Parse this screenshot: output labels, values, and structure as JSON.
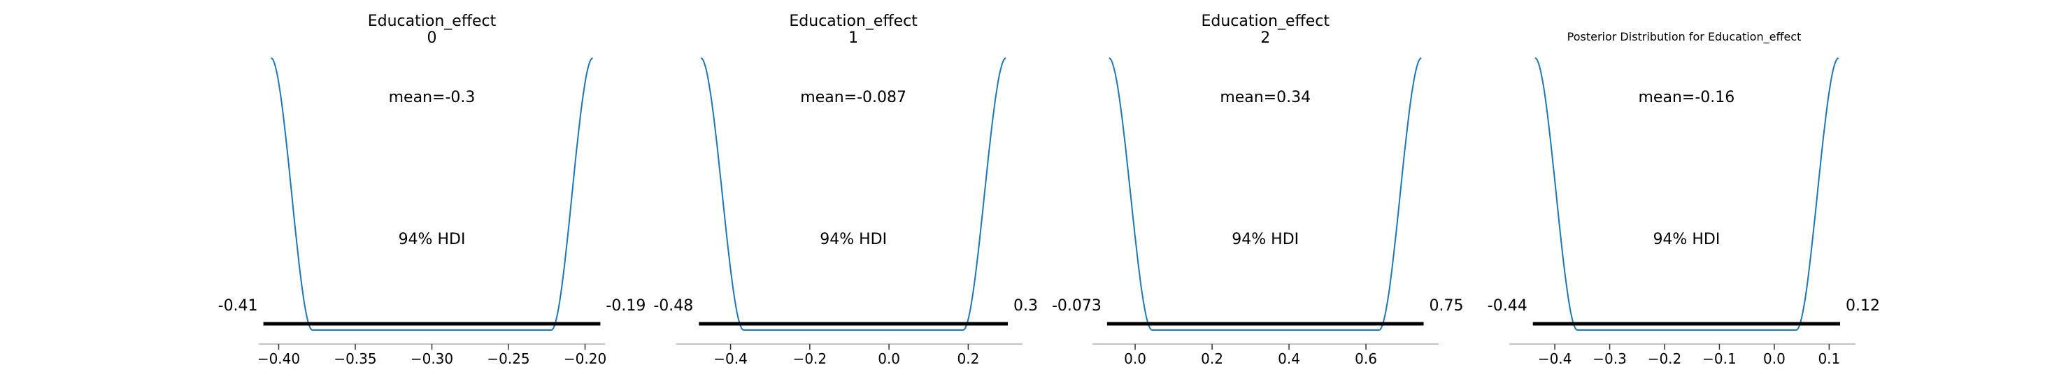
{
  "figure": {
    "suptitle": "Posterior Distribution for Education_effect"
  },
  "colors": {
    "curve": "#1f77b4",
    "hdi_bar": "#000000",
    "axis": "#b0b0b0"
  },
  "chart_data": [
    {
      "type": "line",
      "title": [
        "Education_effect",
        "0"
      ],
      "mean_label": "mean=-0.3",
      "hdi_label": "94% HDI",
      "hdi": {
        "lower": -0.41,
        "upper": -0.19,
        "lower_label": "-0.41",
        "upper_label": "-0.19"
      },
      "xlim": [
        -0.413,
        -0.187
      ],
      "ticks": [
        -0.4,
        -0.35,
        -0.3,
        -0.25,
        -0.2
      ],
      "tick_labels": [
        "−0.40",
        "−0.35",
        "−0.30",
        "−0.25",
        "−0.20"
      ],
      "curve": {
        "left_lo": -0.405,
        "left_hi": -0.378,
        "right_lo": -0.222,
        "right_hi": -0.195,
        "flat_start": -0.377,
        "flat_end": -0.223
      }
    },
    {
      "type": "line",
      "title": [
        "Education_effect",
        "1"
      ],
      "mean_label": "mean=-0.087",
      "hdi_label": "94% HDI",
      "hdi": {
        "lower": -0.48,
        "upper": 0.3,
        "lower_label": "-0.48",
        "upper_label": "0.3"
      },
      "xlim": [
        -0.537,
        0.337
      ],
      "ticks": [
        -0.4,
        -0.2,
        0.0,
        0.2
      ],
      "tick_labels": [
        "−0.4",
        "−0.2",
        "0.0",
        "0.2"
      ],
      "curve": {
        "left_lo": -0.475,
        "left_hi": -0.367,
        "right_lo": 0.187,
        "right_hi": 0.295,
        "flat_start": -0.362,
        "flat_end": 0.179
      }
    },
    {
      "type": "line",
      "title": [
        "Education_effect",
        "2"
      ],
      "mean_label": "mean=0.34",
      "hdi_label": "94% HDI",
      "hdi": {
        "lower": -0.073,
        "upper": 0.75,
        "lower_label": "-0.073",
        "upper_label": "0.75"
      },
      "xlim": [
        -0.111,
        0.789
      ],
      "ticks": [
        0.0,
        0.2,
        0.4,
        0.6
      ],
      "tick_labels": [
        "0.0",
        "0.2",
        "0.4",
        "0.6"
      ],
      "curve": {
        "left_lo": -0.068,
        "left_hi": 0.044,
        "right_lo": 0.634,
        "right_hi": 0.744,
        "flat_start": 0.049,
        "flat_end": 0.626
      }
    },
    {
      "type": "line",
      "title": [],
      "mean_label": "mean=-0.16",
      "hdi_label": "94% HDI",
      "hdi": {
        "lower": -0.44,
        "upper": 0.12,
        "lower_label": "-0.44",
        "upper_label": "0.12"
      },
      "xlim": [
        -0.483,
        0.148
      ],
      "ticks": [
        -0.4,
        -0.3,
        -0.2,
        -0.1,
        0.0,
        0.1
      ],
      "tick_labels": [
        "−0.4",
        "−0.3",
        "−0.2",
        "−0.1",
        "0.0",
        "0.1"
      ],
      "curve": {
        "left_lo": -0.436,
        "left_hi": -0.359,
        "right_lo": 0.04,
        "right_hi": 0.117,
        "flat_start": -0.355,
        "flat_end": 0.033
      }
    }
  ]
}
